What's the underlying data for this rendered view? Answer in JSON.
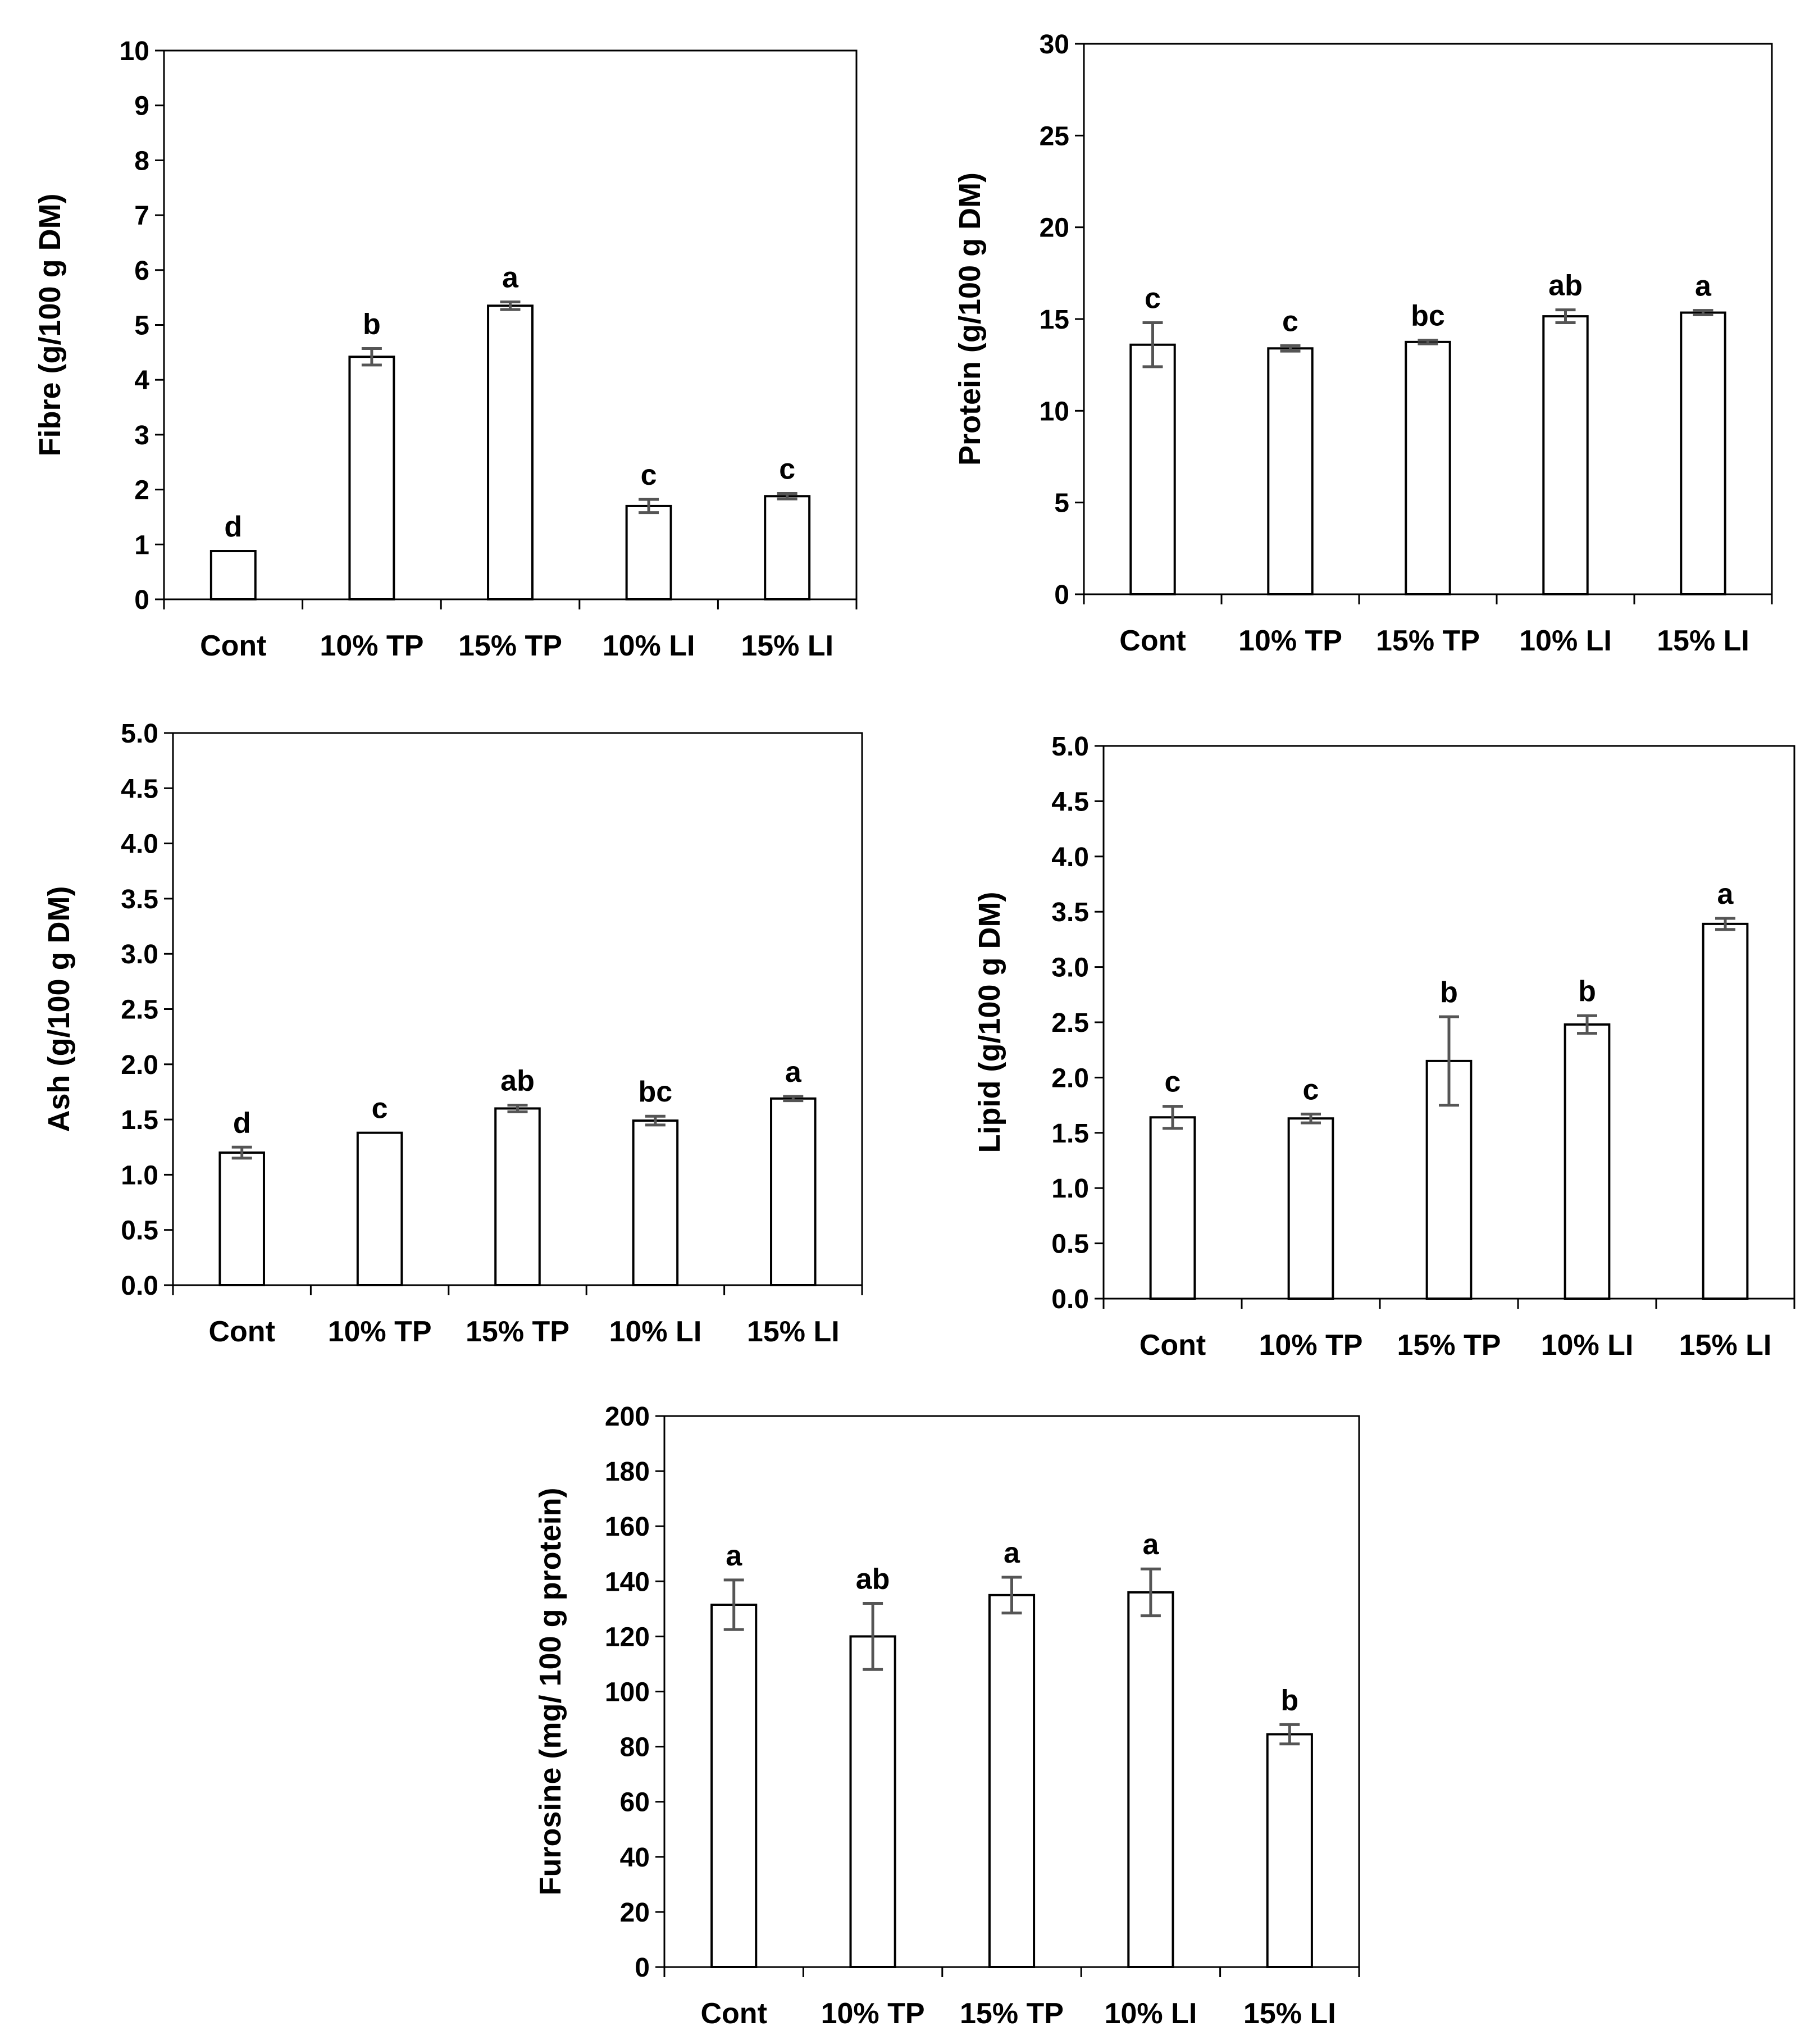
{
  "chart_data": [
    {
      "id": "fibre",
      "type": "bar",
      "title": "",
      "xlabel": "",
      "ylabel": "Fibre (g/100 g DM)",
      "categories": [
        "Cont",
        "10% TP",
        "15% TP",
        "10% LI",
        "15% LI"
      ],
      "values": [
        0.88,
        4.42,
        5.35,
        1.7,
        1.88
      ],
      "errors": [
        0.0,
        0.15,
        0.07,
        0.12,
        0.05
      ],
      "significance": [
        "d",
        "b",
        "a",
        "c",
        "c"
      ],
      "ylim": [
        0,
        10
      ],
      "yticks": [
        "0",
        "1",
        "2",
        "3",
        "4",
        "5",
        "6",
        "7",
        "8",
        "9",
        "10"
      ],
      "grid": false
    },
    {
      "id": "protein",
      "type": "bar",
      "title": "",
      "xlabel": "",
      "ylabel": "Protein (g/100 g DM)",
      "categories": [
        "Cont",
        "10% TP",
        "15% TP",
        "10% LI",
        "15% LI"
      ],
      "values": [
        13.6,
        13.4,
        13.75,
        15.15,
        15.35
      ],
      "errors": [
        1.2,
        0.15,
        0.1,
        0.35,
        0.12
      ],
      "significance": [
        "c",
        "c",
        "bc",
        "ab",
        "a"
      ],
      "ylim": [
        0,
        30
      ],
      "yticks": [
        "0",
        "5",
        "10",
        "15",
        "20",
        "25",
        "30"
      ],
      "grid": false
    },
    {
      "id": "ash",
      "type": "bar",
      "title": "",
      "xlabel": "",
      "ylabel": "Ash (g/100 g DM)",
      "categories": [
        "Cont",
        "10% TP",
        "15% TP",
        "10% LI",
        "15% LI"
      ],
      "values": [
        1.2,
        1.38,
        1.6,
        1.49,
        1.69
      ],
      "errors": [
        0.05,
        0.0,
        0.03,
        0.04,
        0.02
      ],
      "significance": [
        "d",
        "c",
        "ab",
        "bc",
        "a"
      ],
      "ylim": [
        0,
        5
      ],
      "yticks": [
        "0.0",
        "0.5",
        "1.0",
        "1.5",
        "2.0",
        "2.5",
        "3.0",
        "3.5",
        "4.0",
        "4.5",
        "5.0"
      ],
      "grid": false
    },
    {
      "id": "lipid",
      "type": "bar",
      "title": "",
      "xlabel": "",
      "ylabel": "Lipid (g/100 g DM)",
      "categories": [
        "Cont",
        "10% TP",
        "15% TP",
        "10% LI",
        "15% LI"
      ],
      "values": [
        1.64,
        1.63,
        2.15,
        2.48,
        3.39
      ],
      "errors": [
        0.1,
        0.04,
        0.4,
        0.08,
        0.05
      ],
      "significance": [
        "c",
        "c",
        "b",
        "b",
        "a"
      ],
      "ylim": [
        0,
        5
      ],
      "yticks": [
        "0.0",
        "0.5",
        "1.0",
        "1.5",
        "2.0",
        "2.5",
        "3.0",
        "3.5",
        "4.0",
        "4.5",
        "5.0"
      ],
      "grid": false
    },
    {
      "id": "furosine",
      "type": "bar",
      "title": "",
      "xlabel": "",
      "ylabel": "Furosine (mg/ 100 g protein)",
      "categories": [
        "Cont",
        "10% TP",
        "15% TP",
        "10% LI",
        "15% LI"
      ],
      "values": [
        131.5,
        120.0,
        135.0,
        136.0,
        84.5
      ],
      "errors": [
        9,
        12,
        6.5,
        8.5,
        3.5
      ],
      "significance": [
        "a",
        "ab",
        "a",
        "a",
        "b"
      ],
      "ylim": [
        0,
        200
      ],
      "yticks": [
        "0",
        "20",
        "40",
        "60",
        "80",
        "100",
        "120",
        "140",
        "160",
        "180",
        "200"
      ],
      "grid": false
    }
  ]
}
